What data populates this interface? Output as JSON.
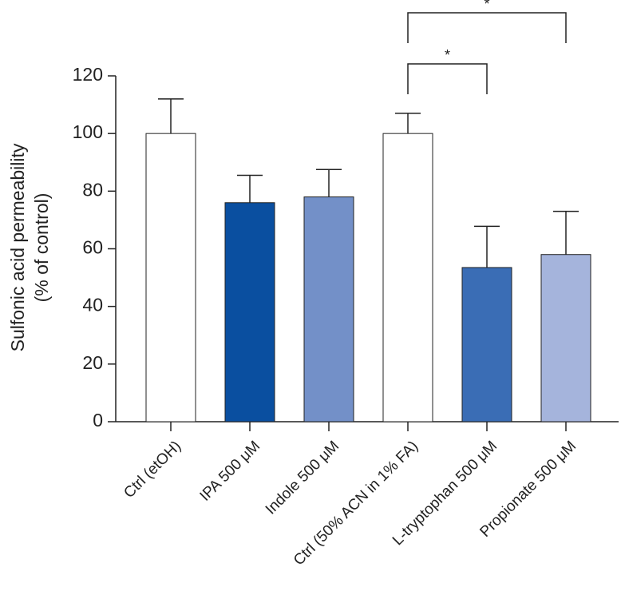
{
  "chart_data": {
    "type": "bar",
    "ylabel": [
      "Sulfonic acid permeability",
      "(% of control)"
    ],
    "categories": [
      "Ctrl (etOH)",
      "IPA 500 μM",
      "Indole 500 μM",
      "Ctrl (50% ACN in 1% FA)",
      "L-tryptophan 500 μM",
      "Propionate 500 μM"
    ],
    "values": [
      100,
      76,
      78,
      100,
      53.5,
      58
    ],
    "errors": [
      12,
      9.5,
      9.5,
      7,
      14.3,
      15
    ],
    "colors": [
      "#ffffff",
      "#0a4fa0",
      "#7390c8",
      "#ffffff",
      "#3a6db5",
      "#a5b4dc"
    ],
    "ylim": [
      0,
      120
    ],
    "yticks": [
      0,
      20,
      40,
      60,
      80,
      100,
      120
    ],
    "annotations": [
      {
        "from": 3,
        "to": 4,
        "label": "*"
      },
      {
        "from": 3,
        "to": 5,
        "label": "*"
      }
    ]
  }
}
